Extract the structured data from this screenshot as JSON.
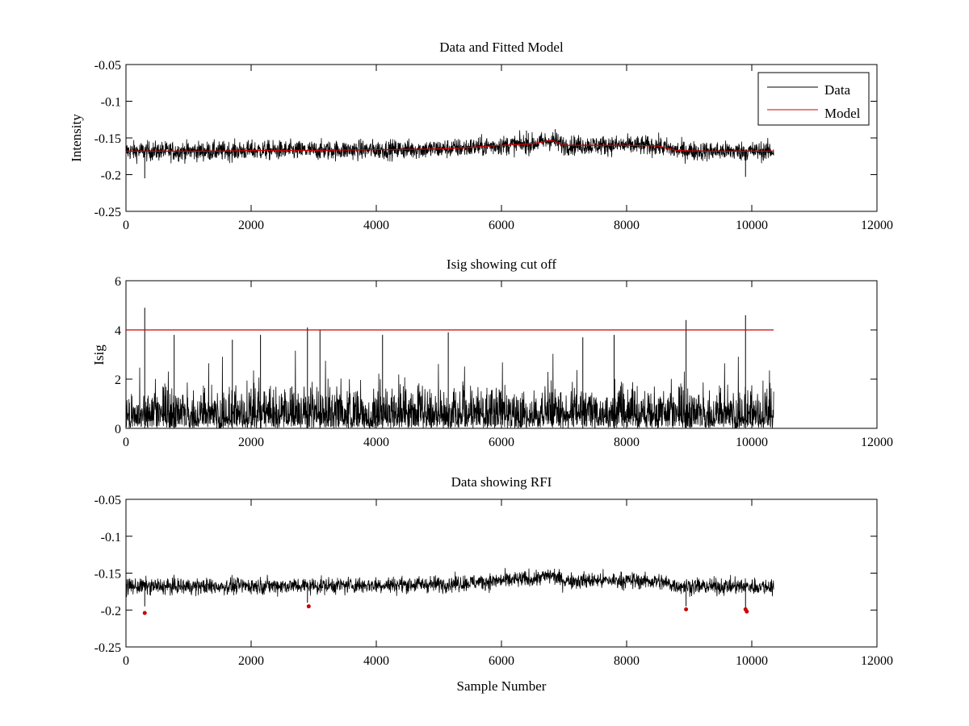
{
  "figure": {
    "background": "#ffffff",
    "line_color": "#000000",
    "model_color": "#cc0000"
  },
  "chart_data": [
    {
      "type": "line",
      "title": "Data and Fitted Model",
      "xlabel": "",
      "ylabel": "Intensity",
      "xlim": [
        0,
        12000
      ],
      "ylim": [
        -0.25,
        -0.05
      ],
      "y_reversed": true,
      "grid": false,
      "legend_position": "top-right",
      "xticks": [
        0,
        2000,
        4000,
        6000,
        8000,
        10000,
        12000
      ],
      "xtick_labels": [
        "0",
        "2000",
        "4000",
        "6000",
        "8000",
        "10000",
        "12000"
      ],
      "yticks": [
        -0.05,
        -0.1,
        -0.15,
        -0.2,
        -0.25
      ],
      "ytick_labels": [
        "-0.05",
        "-0.1",
        "-0.15",
        "-0.2",
        "-0.25"
      ],
      "series": [
        {
          "name": "Data",
          "color": "#000000",
          "kind": "noisy",
          "n_samples": 10350,
          "baseline_x": [
            0,
            1500,
            2000,
            3000,
            4000,
            5000,
            5500,
            6000,
            6500,
            6800,
            7000,
            7500,
            8000,
            8500,
            8800,
            9200,
            10000,
            10350
          ],
          "baseline_y": [
            -0.168,
            -0.168,
            -0.167,
            -0.167,
            -0.166,
            -0.165,
            -0.163,
            -0.16,
            -0.158,
            -0.153,
            -0.16,
            -0.16,
            -0.16,
            -0.161,
            -0.167,
            -0.168,
            -0.168,
            -0.168
          ],
          "noise_amplitude": 0.012,
          "spikes": [
            {
              "x": 300,
              "y": -0.205
            },
            {
              "x": 9900,
              "y": -0.203
            },
            {
              "x": 6860,
              "y": -0.138
            },
            {
              "x": 6400,
              "y": -0.14
            }
          ]
        },
        {
          "name": "Model",
          "color": "#cc0000",
          "kind": "line",
          "x": [
            0,
            1500,
            2000,
            3000,
            4000,
            5000,
            5500,
            6000,
            6500,
            6800,
            7000,
            7500,
            8000,
            8500,
            8800,
            9200,
            10000,
            10350
          ],
          "y": [
            -0.168,
            -0.168,
            -0.167,
            -0.167,
            -0.166,
            -0.165,
            -0.163,
            -0.16,
            -0.158,
            -0.153,
            -0.16,
            -0.16,
            -0.16,
            -0.161,
            -0.167,
            -0.168,
            -0.168,
            -0.168
          ]
        }
      ]
    },
    {
      "type": "line",
      "title": "Isig showing cut off",
      "xlabel": "",
      "ylabel": "Isig",
      "xlim": [
        0,
        12000
      ],
      "ylim": [
        0,
        6
      ],
      "y_reversed": false,
      "grid": false,
      "xticks": [
        0,
        2000,
        4000,
        6000,
        8000,
        10000,
        12000
      ],
      "xtick_labels": [
        "0",
        "2000",
        "4000",
        "6000",
        "8000",
        "10000",
        "12000"
      ],
      "yticks": [
        0,
        2,
        4,
        6
      ],
      "ytick_labels": [
        "0",
        "2",
        "4",
        "6"
      ],
      "series": [
        {
          "color": "#000000",
          "kind": "isig",
          "n_samples": 10350,
          "spikes": [
            {
              "x": 300,
              "y": 4.9
            },
            {
              "x": 2900,
              "y": 4.1
            },
            {
              "x": 3100,
              "y": 4.0
            },
            {
              "x": 8950,
              "y": 4.4
            },
            {
              "x": 9900,
              "y": 4.6
            },
            {
              "x": 2150,
              "y": 3.8
            },
            {
              "x": 4100,
              "y": 3.8
            },
            {
              "x": 5150,
              "y": 3.9
            },
            {
              "x": 7300,
              "y": 3.7
            },
            {
              "x": 7800,
              "y": 3.8
            },
            {
              "x": 770,
              "y": 3.8
            },
            {
              "x": 1700,
              "y": 3.6
            }
          ]
        },
        {
          "color": "#cc0000",
          "kind": "line",
          "x": [
            0,
            10350
          ],
          "y": [
            4,
            4
          ]
        }
      ]
    },
    {
      "type": "line",
      "title": "Data showing RFI",
      "xlabel": "Sample Number",
      "ylabel": "",
      "xlim": [
        0,
        12000
      ],
      "ylim": [
        -0.25,
        -0.05
      ],
      "y_reversed": true,
      "grid": false,
      "xticks": [
        0,
        2000,
        4000,
        6000,
        8000,
        10000,
        12000
      ],
      "xtick_labels": [
        "0",
        "2000",
        "4000",
        "6000",
        "8000",
        "10000",
        "12000"
      ],
      "yticks": [
        -0.05,
        -0.1,
        -0.15,
        -0.2,
        -0.25
      ],
      "ytick_labels": [
        "-0.05",
        "-0.1",
        "-0.15",
        "-0.2",
        "-0.25"
      ],
      "series": [
        {
          "color": "#000000",
          "kind": "noisy",
          "n_samples": 10350,
          "baseline_x": [
            0,
            1500,
            2000,
            3000,
            4000,
            5000,
            5500,
            6000,
            6500,
            6800,
            7000,
            7500,
            8000,
            8500,
            8800,
            9200,
            10000,
            10350
          ],
          "baseline_y": [
            -0.168,
            -0.168,
            -0.167,
            -0.167,
            -0.166,
            -0.165,
            -0.163,
            -0.16,
            -0.158,
            -0.153,
            -0.16,
            -0.16,
            -0.16,
            -0.161,
            -0.167,
            -0.168,
            -0.168,
            -0.168
          ],
          "noise_amplitude": 0.01,
          "spikes": [
            {
              "x": 300,
              "y": -0.195
            },
            {
              "x": 2900,
              "y": -0.19
            },
            {
              "x": 8950,
              "y": -0.195
            },
            {
              "x": 9900,
              "y": -0.197
            }
          ]
        },
        {
          "color": "#cc0000",
          "kind": "points",
          "x": [
            300,
            2920,
            8950,
            9900,
            9920
          ],
          "y": [
            -0.204,
            -0.195,
            -0.199,
            -0.199,
            -0.202
          ]
        }
      ]
    }
  ]
}
